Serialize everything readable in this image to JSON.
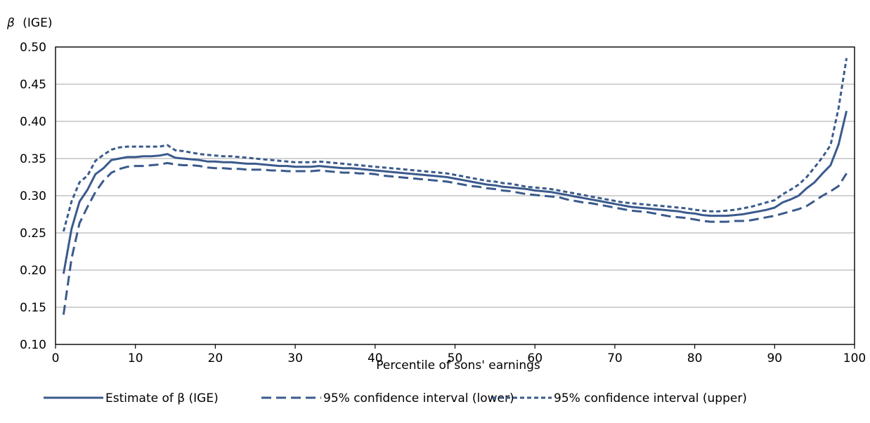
{
  "chart_data": {
    "type": "line",
    "ylabel_prefix": "β",
    "ylabel": "(IGE)",
    "xlabel": "Percentile of sons' earnings",
    "xlim": [
      0,
      100
    ],
    "ylim": [
      0.1,
      0.5
    ],
    "xticks": [
      0,
      10,
      20,
      30,
      40,
      50,
      60,
      70,
      80,
      90,
      100
    ],
    "xtick_labels": [
      "0",
      "10",
      "20",
      "30",
      "40",
      "50",
      "60",
      "70",
      "80",
      "90",
      "100"
    ],
    "yticks": [
      0.1,
      0.15,
      0.2,
      0.25,
      0.3,
      0.35,
      0.4,
      0.45,
      0.5
    ],
    "ytick_labels": [
      "0.10",
      "0.15",
      "0.20",
      "0.25",
      "0.30",
      "0.35",
      "0.40",
      "0.45",
      "0.50"
    ],
    "grid": "horizontal",
    "legend_position": "bottom",
    "series_color": "#3a5a8c",
    "x": [
      1,
      2,
      3,
      4,
      5,
      6,
      7,
      8,
      9,
      10,
      11,
      12,
      13,
      14,
      15,
      16,
      17,
      18,
      19,
      20,
      21,
      22,
      23,
      24,
      25,
      26,
      27,
      28,
      29,
      30,
      31,
      32,
      33,
      34,
      35,
      36,
      37,
      38,
      39,
      40,
      41,
      42,
      43,
      44,
      45,
      46,
      47,
      48,
      49,
      50,
      51,
      52,
      53,
      54,
      55,
      56,
      57,
      58,
      59,
      60,
      61,
      62,
      63,
      64,
      65,
      66,
      67,
      68,
      69,
      70,
      71,
      72,
      73,
      74,
      75,
      76,
      77,
      78,
      79,
      80,
      81,
      82,
      83,
      84,
      85,
      86,
      87,
      88,
      89,
      90,
      91,
      92,
      93,
      94,
      95,
      96,
      97,
      98,
      99
    ],
    "series": [
      {
        "name": "Estimate of β (IGE)",
        "dash": "solid",
        "values": [
          0.195,
          0.255,
          0.292,
          0.308,
          0.329,
          0.337,
          0.348,
          0.35,
          0.352,
          0.352,
          0.353,
          0.353,
          0.354,
          0.356,
          0.351,
          0.35,
          0.349,
          0.348,
          0.346,
          0.346,
          0.345,
          0.345,
          0.344,
          0.343,
          0.343,
          0.342,
          0.341,
          0.34,
          0.34,
          0.339,
          0.339,
          0.339,
          0.34,
          0.339,
          0.338,
          0.337,
          0.337,
          0.336,
          0.335,
          0.334,
          0.333,
          0.332,
          0.331,
          0.33,
          0.329,
          0.328,
          0.327,
          0.326,
          0.325,
          0.323,
          0.321,
          0.319,
          0.317,
          0.315,
          0.314,
          0.312,
          0.311,
          0.31,
          0.309,
          0.307,
          0.306,
          0.305,
          0.303,
          0.301,
          0.299,
          0.297,
          0.295,
          0.293,
          0.291,
          0.289,
          0.287,
          0.285,
          0.284,
          0.283,
          0.282,
          0.281,
          0.28,
          0.279,
          0.277,
          0.276,
          0.274,
          0.273,
          0.273,
          0.273,
          0.274,
          0.275,
          0.277,
          0.279,
          0.281,
          0.284,
          0.291,
          0.295,
          0.3,
          0.31,
          0.318,
          0.33,
          0.341,
          0.369,
          0.414
        ]
      },
      {
        "name": "95% confidence interval (lower)",
        "dash": "long",
        "values": [
          0.14,
          0.215,
          0.263,
          0.285,
          0.305,
          0.32,
          0.331,
          0.336,
          0.339,
          0.34,
          0.34,
          0.341,
          0.342,
          0.344,
          0.342,
          0.341,
          0.341,
          0.34,
          0.338,
          0.337,
          0.337,
          0.336,
          0.336,
          0.335,
          0.335,
          0.335,
          0.334,
          0.334,
          0.333,
          0.333,
          0.333,
          0.333,
          0.334,
          0.333,
          0.332,
          0.331,
          0.331,
          0.33,
          0.33,
          0.329,
          0.327,
          0.326,
          0.325,
          0.324,
          0.323,
          0.322,
          0.321,
          0.32,
          0.319,
          0.317,
          0.315,
          0.313,
          0.312,
          0.31,
          0.309,
          0.307,
          0.306,
          0.304,
          0.302,
          0.301,
          0.3,
          0.299,
          0.298,
          0.295,
          0.293,
          0.291,
          0.29,
          0.288,
          0.286,
          0.284,
          0.282,
          0.28,
          0.279,
          0.278,
          0.276,
          0.274,
          0.272,
          0.271,
          0.27,
          0.268,
          0.266,
          0.265,
          0.265,
          0.265,
          0.266,
          0.266,
          0.267,
          0.269,
          0.271,
          0.273,
          0.276,
          0.279,
          0.282,
          0.286,
          0.293,
          0.3,
          0.306,
          0.313,
          0.33
        ]
      },
      {
        "name": "95% confidence interval (upper)",
        "dash": "short",
        "values": [
          0.252,
          0.292,
          0.318,
          0.327,
          0.347,
          0.355,
          0.362,
          0.365,
          0.366,
          0.366,
          0.366,
          0.366,
          0.366,
          0.368,
          0.361,
          0.36,
          0.358,
          0.356,
          0.355,
          0.354,
          0.353,
          0.353,
          0.352,
          0.351,
          0.35,
          0.349,
          0.348,
          0.347,
          0.346,
          0.345,
          0.345,
          0.345,
          0.346,
          0.345,
          0.344,
          0.343,
          0.342,
          0.341,
          0.34,
          0.339,
          0.338,
          0.337,
          0.336,
          0.335,
          0.334,
          0.333,
          0.332,
          0.331,
          0.33,
          0.328,
          0.326,
          0.324,
          0.322,
          0.32,
          0.319,
          0.317,
          0.316,
          0.314,
          0.312,
          0.311,
          0.31,
          0.309,
          0.307,
          0.305,
          0.303,
          0.301,
          0.299,
          0.297,
          0.295,
          0.293,
          0.291,
          0.29,
          0.289,
          0.288,
          0.287,
          0.286,
          0.285,
          0.284,
          0.283,
          0.281,
          0.28,
          0.279,
          0.279,
          0.28,
          0.281,
          0.283,
          0.285,
          0.288,
          0.291,
          0.294,
          0.302,
          0.308,
          0.315,
          0.325,
          0.338,
          0.352,
          0.368,
          0.418,
          0.485
        ]
      }
    ]
  }
}
